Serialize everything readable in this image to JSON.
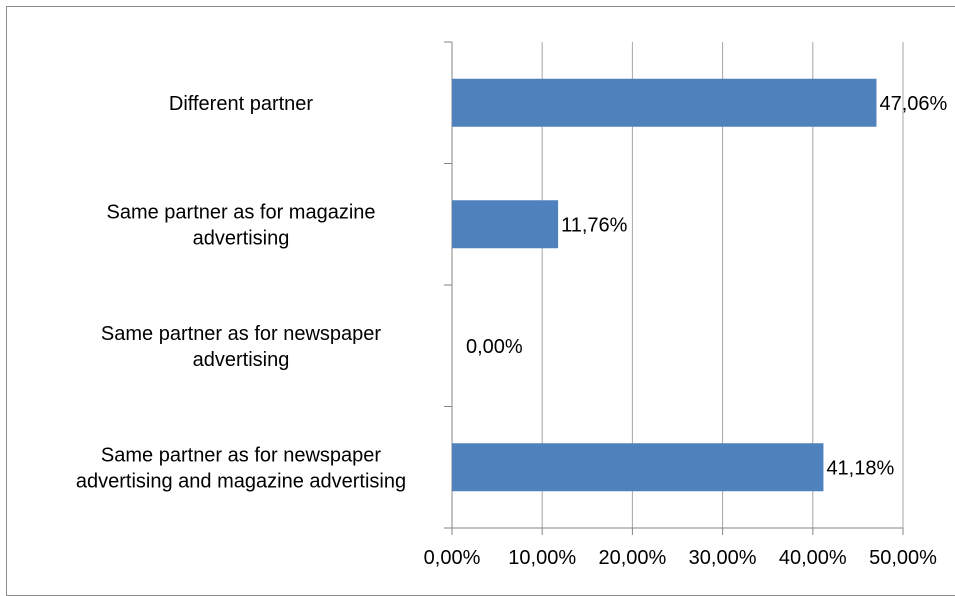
{
  "chart_data": {
    "type": "bar",
    "orientation": "horizontal",
    "title": "",
    "xlabel": "",
    "ylabel": "",
    "categories": [
      [
        "Different partner"
      ],
      [
        "Same partner as for magazine",
        "advertising"
      ],
      [
        "Same partner as for newspaper",
        "advertising"
      ],
      [
        "Same partner as for newspaper",
        "advertising and magazine advertising"
      ]
    ],
    "values": [
      47.06,
      11.76,
      0.0,
      41.18
    ],
    "data_labels": [
      "47,06%",
      "11,76%",
      "0,00%",
      "41,18%"
    ],
    "xlim": [
      0,
      50
    ],
    "ticks": [
      0,
      10,
      20,
      30,
      40,
      50
    ],
    "tick_labels": [
      "0,00%",
      "10,00%",
      "20,00%",
      "30,00%",
      "40,00%",
      "50,00%"
    ],
    "grid": "vertical",
    "legend": "none",
    "bar_color": "#4F81BD",
    "grid_color": "#A6A6A6"
  }
}
